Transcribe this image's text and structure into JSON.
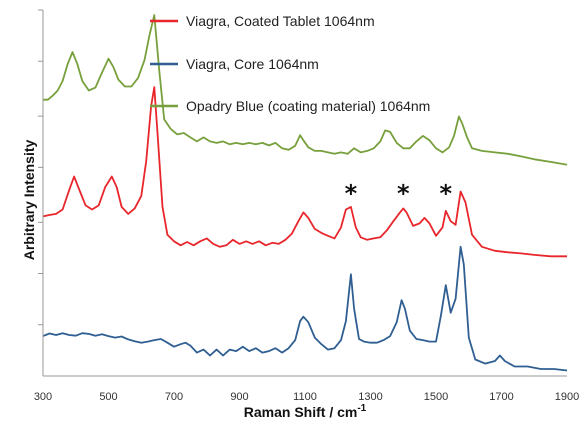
{
  "chart_data": {
    "type": "line",
    "xlabel": "Raman Shift / cm",
    "xlabel_sup": "-1",
    "ylabel": "Arbitrary Intensity",
    "xlim": [
      300,
      1900
    ],
    "ylim": [
      0,
      100
    ],
    "x_ticks": [
      300,
      500,
      700,
      900,
      1100,
      1300,
      1500,
      1700,
      1900
    ],
    "y_minor_ticks": [
      14,
      28,
      42,
      57,
      71,
      86,
      100
    ],
    "grid": false,
    "legend_position": "top-center",
    "annotations": [
      {
        "text": "*",
        "x": 1240,
        "y": 52
      },
      {
        "text": "*",
        "x": 1400,
        "y": 52
      },
      {
        "text": "*",
        "x": 1530,
        "y": 52
      }
    ],
    "series": [
      {
        "name": "Viagra, Coated Tablet 1064nm",
        "color": "#e8262b",
        "x": [
          300,
          320,
          340,
          360,
          380,
          395,
          410,
          430,
          450,
          470,
          490,
          510,
          525,
          540,
          560,
          580,
          600,
          615,
          630,
          640,
          650,
          665,
          680,
          700,
          720,
          740,
          760,
          780,
          800,
          820,
          840,
          860,
          880,
          900,
          920,
          940,
          960,
          980,
          1000,
          1020,
          1040,
          1060,
          1080,
          1095,
          1110,
          1130,
          1150,
          1170,
          1190,
          1210,
          1225,
          1240,
          1255,
          1270,
          1290,
          1310,
          1330,
          1350,
          1370,
          1390,
          1400,
          1410,
          1430,
          1450,
          1465,
          1480,
          1500,
          1520,
          1530,
          1545,
          1560,
          1575,
          1590,
          1610,
          1640,
          1680,
          1720,
          1760,
          1800,
          1850,
          1900
        ],
        "y": [
          43.6,
          44.0,
          44.3,
          45.5,
          50.8,
          54.5,
          51.1,
          46.6,
          45.5,
          46.6,
          51.6,
          54.5,
          51.6,
          46.2,
          44.3,
          45.8,
          49.2,
          58.7,
          73.7,
          78.9,
          66.0,
          46.2,
          38.6,
          36.8,
          35.7,
          36.6,
          35.7,
          36.8,
          37.6,
          36.1,
          35.3,
          35.7,
          37.2,
          36.1,
          36.8,
          36.1,
          36.8,
          35.7,
          36.4,
          36.1,
          37.2,
          38.9,
          42.3,
          44.7,
          43.2,
          40.2,
          39.1,
          38.3,
          37.6,
          40.6,
          45.5,
          46.2,
          40.6,
          37.9,
          37.2,
          37.6,
          37.9,
          39.8,
          42.3,
          44.7,
          45.8,
          44.7,
          41.0,
          41.7,
          43.2,
          41.7,
          38.3,
          40.6,
          45.1,
          42.3,
          41.3,
          50.4,
          47.4,
          38.6,
          35.3,
          34.2,
          33.8,
          33.5,
          33.1,
          32.7,
          32.7
        ]
      },
      {
        "name": "Viagra, Core 1064nm",
        "color": "#2f5f92",
        "x": [
          300,
          320,
          340,
          360,
          380,
          400,
          420,
          440,
          460,
          480,
          500,
          520,
          540,
          560,
          580,
          600,
          620,
          640,
          660,
          680,
          700,
          720,
          735,
          750,
          770,
          790,
          810,
          830,
          850,
          870,
          890,
          910,
          930,
          950,
          970,
          990,
          1010,
          1030,
          1050,
          1070,
          1085,
          1095,
          1110,
          1130,
          1150,
          1170,
          1190,
          1210,
          1225,
          1240,
          1250,
          1265,
          1280,
          1300,
          1320,
          1340,
          1360,
          1380,
          1395,
          1405,
          1420,
          1440,
          1460,
          1480,
          1500,
          1515,
          1530,
          1545,
          1560,
          1575,
          1585,
          1600,
          1620,
          1650,
          1680,
          1695,
          1710,
          1740,
          1780,
          1820,
          1860,
          1900
        ],
        "y": [
          10.9,
          11.6,
          11.2,
          11.7,
          11.2,
          11.0,
          11.7,
          11.5,
          11.0,
          11.4,
          10.9,
          10.5,
          10.8,
          10.0,
          9.5,
          9.1,
          9.4,
          9.8,
          10.1,
          9.1,
          8.0,
          8.7,
          9.1,
          8.3,
          6.4,
          7.2,
          5.6,
          7.2,
          5.6,
          7.2,
          6.8,
          8.0,
          6.8,
          7.6,
          6.4,
          6.8,
          7.6,
          6.4,
          7.6,
          9.8,
          15.0,
          16.2,
          14.7,
          10.5,
          8.7,
          7.2,
          7.6,
          9.8,
          15.0,
          27.8,
          18.4,
          10.1,
          9.4,
          9.1,
          9.1,
          9.8,
          10.9,
          14.7,
          20.7,
          18.4,
          12.4,
          10.1,
          9.8,
          9.4,
          9.4,
          16.5,
          24.8,
          17.3,
          21.1,
          35.3,
          30.5,
          10.5,
          4.5,
          3.4,
          4.1,
          5.6,
          4.1,
          2.6,
          2.6,
          1.9,
          1.9,
          1.5
        ]
      },
      {
        "name": "Opadry Blue (coating material) 1064nm",
        "color": "#77a03c",
        "x": [
          300,
          315,
          330,
          345,
          360,
          375,
          390,
          405,
          420,
          440,
          460,
          480,
          500,
          515,
          530,
          550,
          570,
          590,
          610,
          625,
          640,
          655,
          670,
          690,
          710,
          730,
          750,
          770,
          790,
          810,
          830,
          850,
          870,
          890,
          910,
          930,
          950,
          970,
          990,
          1010,
          1030,
          1050,
          1070,
          1085,
          1095,
          1110,
          1130,
          1150,
          1170,
          1190,
          1210,
          1230,
          1250,
          1270,
          1290,
          1310,
          1330,
          1345,
          1360,
          1380,
          1400,
          1420,
          1440,
          1460,
          1480,
          1500,
          1520,
          1540,
          1555,
          1570,
          1580,
          1595,
          1610,
          1640,
          1680,
          1720,
          1760,
          1800,
          1850,
          1900
        ],
        "y": [
          75.5,
          75.5,
          76.6,
          78.0,
          80.6,
          85.2,
          88.5,
          85.2,
          80.6,
          78.0,
          78.8,
          82.9,
          86.7,
          84.4,
          81.0,
          79.1,
          79.1,
          81.4,
          86.3,
          93.0,
          98.6,
          83.3,
          70.1,
          67.5,
          66.0,
          66.4,
          65.2,
          64.1,
          65.2,
          64.1,
          63.7,
          64.1,
          63.3,
          63.7,
          63.3,
          63.7,
          63.3,
          63.7,
          63.0,
          63.7,
          62.2,
          61.8,
          62.9,
          65.8,
          64.4,
          62.5,
          61.5,
          61.5,
          61.1,
          60.7,
          61.1,
          60.7,
          62.2,
          61.1,
          61.5,
          62.2,
          64.1,
          67.1,
          66.7,
          63.7,
          62.2,
          62.2,
          64.1,
          65.6,
          64.4,
          62.2,
          61.1,
          62.5,
          65.6,
          70.9,
          69.0,
          65.2,
          62.2,
          61.5,
          61.1,
          60.7,
          60.0,
          59.2,
          58.5,
          57.7
        ]
      }
    ]
  }
}
